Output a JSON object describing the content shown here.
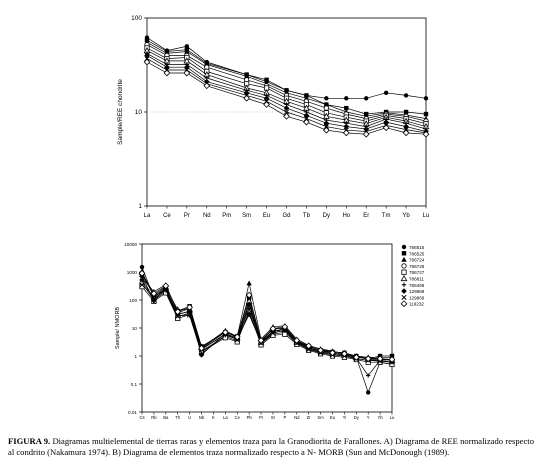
{
  "caption": {
    "label": "FIGURA 9.",
    "text": " Diagramas multielemental de tierras raras y elementos traza para la Granodiorita de Farallones. A) Diagrama de REE normalizado respecto al condrito (Nakamura 1974). B) Diagrama de elementos traza normalizado respecto a N- MORB (Sun and McDonough (1989)."
  },
  "chart_data": [
    {
      "type": "line",
      "ylabel": "Sample/REE chondrite",
      "yscale": "log",
      "ylim": [
        1,
        100
      ],
      "yticks": [
        "1",
        "10",
        "100"
      ],
      "categories": [
        "La",
        "Ce",
        "Pr",
        "Nd",
        "Pm",
        "Sm",
        "Eu",
        "Gd",
        "Tb",
        "Dy",
        "Ho",
        "Er",
        "Tm",
        "Yb",
        "Lu"
      ],
      "series": [
        {
          "values": [
            62,
            45,
            50,
            34,
            null,
            25,
            21,
            17,
            15,
            14,
            14,
            14,
            16,
            15,
            14
          ]
        },
        {
          "values": [
            58,
            44,
            46,
            33,
            null,
            25,
            22,
            17,
            15,
            12,
            11,
            9.5,
            10,
            10,
            9.5
          ]
        },
        {
          "values": [
            55,
            42,
            44,
            32,
            null,
            24,
            20,
            16,
            14,
            12,
            10,
            9,
            9.8,
            9.3,
            8.5
          ]
        },
        {
          "values": [
            52,
            40,
            40,
            30,
            null,
            22,
            19,
            15,
            13,
            11,
            9.5,
            8.5,
            9.5,
            9,
            8
          ]
        },
        {
          "values": [
            48,
            37,
            38,
            27,
            null,
            20,
            18,
            14,
            12,
            9.8,
            8.8,
            8,
            9.2,
            8.5,
            7.5
          ]
        },
        {
          "values": [
            45,
            35,
            35,
            25,
            null,
            18,
            16,
            13,
            11,
            9,
            8.2,
            7.5,
            8.8,
            8,
            7
          ]
        },
        {
          "values": [
            42,
            32,
            32,
            23,
            null,
            17,
            15,
            12,
            10,
            8.2,
            7.6,
            7,
            8.4,
            7.6,
            6.6
          ]
        },
        {
          "values": [
            40,
            30,
            30,
            21,
            null,
            16,
            14,
            11,
            9.2,
            7.6,
            7,
            6.6,
            7.8,
            7,
            6.2
          ]
        },
        {
          "values": [
            37,
            28,
            28,
            20,
            null,
            15,
            13,
            10,
            8.5,
            7,
            6.4,
            6.2,
            7.2,
            6.5,
            6
          ]
        },
        {
          "values": [
            34,
            26,
            26,
            19,
            null,
            14,
            12,
            9,
            7.8,
            6.4,
            6,
            5.8,
            6.8,
            6,
            5.8
          ]
        }
      ]
    },
    {
      "type": "line",
      "ylabel": "Sample/ NMORB",
      "yscale": "log",
      "ylim": [
        0.01,
        10000
      ],
      "yticks": [
        "0.01",
        "0.1",
        "1",
        "10",
        "100",
        "1000",
        "10000"
      ],
      "categories": [
        "Cs",
        "Rb",
        "Ba",
        "Th",
        "U",
        "Nb",
        "K",
        "La",
        "Ce",
        "Pb",
        "Pr",
        "Sr",
        "P",
        "Nd",
        "Zr",
        "Sm",
        "Eu",
        "Ti",
        "Dy",
        "Y",
        "Yb",
        "Lu"
      ],
      "legend": [
        "786515",
        "786525",
        "786724",
        "786726",
        "786727",
        "786811",
        "786468",
        "129868",
        "129869",
        "119232"
      ],
      "series": [
        {
          "name": "786515",
          "values": [
            1500,
            120,
            250,
            30,
            40,
            1.8,
            null,
            6,
            4,
            30,
            3,
            7,
            8,
            3,
            2,
            1.4,
            1.2,
            1.1,
            0.9,
            0.05,
            0.6,
            0.5
          ]
        },
        {
          "name": "786525",
          "values": [
            800,
            150,
            300,
            40,
            60,
            2.2,
            null,
            7,
            5,
            120,
            3.5,
            9,
            10,
            3.5,
            2.2,
            1.6,
            1.4,
            1.3,
            1.0,
            0.8,
            1.0,
            1.0
          ]
        },
        {
          "name": "786724",
          "values": [
            600,
            200,
            350,
            35,
            50,
            2,
            null,
            8,
            5,
            400,
            4,
            11,
            12,
            4,
            2.4,
            1.8,
            1.5,
            1.2,
            1.0,
            0.9,
            0.9,
            0.9
          ]
        },
        {
          "name": "786726",
          "values": [
            400,
            100,
            200,
            25,
            35,
            1.5,
            null,
            5,
            3.5,
            60,
            2.8,
            6,
            7,
            2.8,
            1.8,
            1.3,
            1.1,
            1.0,
            0.8,
            0.7,
            0.7,
            0.6
          ]
        },
        {
          "name": "786727",
          "values": [
            300,
            90,
            180,
            22,
            30,
            1.4,
            null,
            4.5,
            3.2,
            40,
            2.5,
            5.5,
            6,
            2.6,
            1.6,
            1.2,
            1.0,
            0.9,
            0.75,
            0.6,
            0.6,
            0.5
          ]
        },
        {
          "name": "786811",
          "values": [
            1000,
            130,
            280,
            45,
            45,
            2.1,
            null,
            7.5,
            4.5,
            90,
            3.2,
            10,
            9,
            3.2,
            2.0,
            1.5,
            1.3,
            1.2,
            0.9,
            0.85,
            0.8,
            0.7
          ]
        },
        {
          "name": "786468",
          "values": [
            500,
            110,
            220,
            28,
            28,
            1.2,
            null,
            5.5,
            4,
            50,
            3,
            8,
            8,
            3,
            1.9,
            1.4,
            1.2,
            1.1,
            0.85,
            0.2,
            0.7,
            0.6
          ]
        },
        {
          "name": "129868",
          "values": [
            700,
            95,
            260,
            32,
            38,
            1.1,
            null,
            6.5,
            4.2,
            70,
            3.3,
            7.5,
            9.5,
            3.3,
            2.1,
            1.7,
            1.4,
            1.3,
            0.95,
            0.75,
            0.75,
            0.7
          ]
        },
        {
          "name": "129869",
          "values": [
            350,
            140,
            240,
            26,
            33,
            1.7,
            null,
            6,
            3.8,
            35,
            2.9,
            6.5,
            8.5,
            2.9,
            1.7,
            1.3,
            1.1,
            1.0,
            0.8,
            0.7,
            0.65,
            0.6
          ]
        },
        {
          "name": "119232",
          "values": [
            900,
            170,
            320,
            38,
            55,
            1.9,
            null,
            7,
            4.8,
            150,
            3.6,
            9.5,
            11,
            3.6,
            2.3,
            1.6,
            1.3,
            1.2,
            0.9,
            0.8,
            0.8,
            0.75
          ]
        }
      ]
    }
  ]
}
